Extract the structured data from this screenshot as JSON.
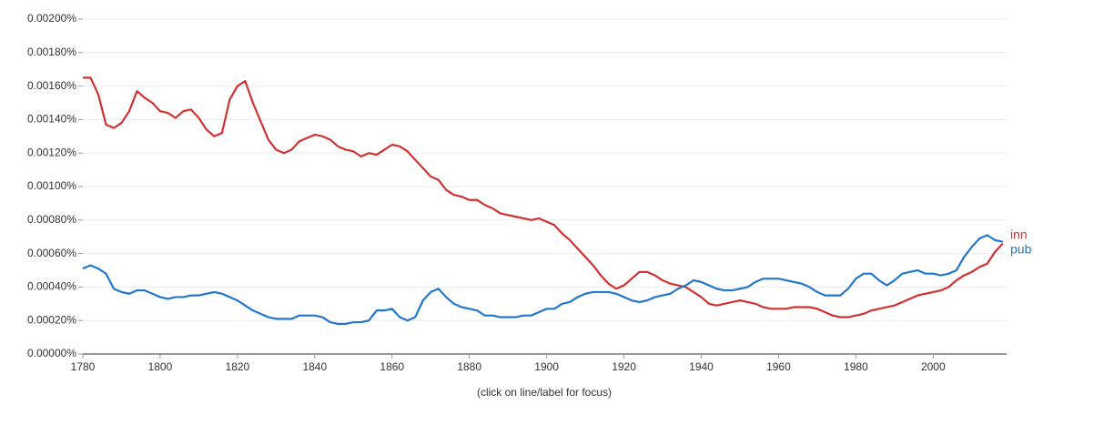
{
  "chart_data": {
    "type": "line",
    "note": "(click on line/label for focus)",
    "x": [
      1780,
      1782,
      1784,
      1786,
      1788,
      1790,
      1792,
      1794,
      1796,
      1798,
      1800,
      1802,
      1804,
      1806,
      1808,
      1810,
      1812,
      1814,
      1816,
      1818,
      1820,
      1822,
      1824,
      1826,
      1828,
      1830,
      1832,
      1834,
      1836,
      1838,
      1840,
      1842,
      1844,
      1846,
      1848,
      1850,
      1852,
      1854,
      1856,
      1858,
      1860,
      1862,
      1864,
      1866,
      1868,
      1870,
      1872,
      1874,
      1876,
      1878,
      1880,
      1882,
      1884,
      1886,
      1888,
      1890,
      1892,
      1894,
      1896,
      1898,
      1900,
      1902,
      1904,
      1906,
      1908,
      1910,
      1912,
      1914,
      1916,
      1918,
      1920,
      1922,
      1924,
      1926,
      1928,
      1930,
      1932,
      1934,
      1936,
      1938,
      1940,
      1942,
      1944,
      1946,
      1948,
      1950,
      1952,
      1954,
      1956,
      1958,
      1960,
      1962,
      1964,
      1966,
      1968,
      1970,
      1972,
      1974,
      1976,
      1978,
      1980,
      1982,
      1984,
      1986,
      1988,
      1990,
      1992,
      1994,
      1996,
      1998,
      2000,
      2002,
      2004,
      2006,
      2008,
      2010,
      2012,
      2014,
      2016,
      2018
    ],
    "series": [
      {
        "name": "inn",
        "color": "#d03232",
        "values": [
          0.00165,
          0.00165,
          0.00155,
          0.00137,
          0.00135,
          0.00138,
          0.00145,
          0.00157,
          0.00153,
          0.0015,
          0.00145,
          0.00144,
          0.00141,
          0.00145,
          0.00146,
          0.00141,
          0.00134,
          0.0013,
          0.00132,
          0.00152,
          0.0016,
          0.00163,
          0.0015,
          0.00139,
          0.00128,
          0.00122,
          0.0012,
          0.00122,
          0.00127,
          0.00129,
          0.00131,
          0.0013,
          0.00128,
          0.00124,
          0.00122,
          0.00121,
          0.00118,
          0.0012,
          0.00119,
          0.00122,
          0.00125,
          0.00124,
          0.00121,
          0.00116,
          0.00111,
          0.00106,
          0.00104,
          0.00098,
          0.00095,
          0.00094,
          0.00092,
          0.00092,
          0.00089,
          0.00087,
          0.00084,
          0.00083,
          0.00082,
          0.00081,
          0.0008,
          0.00081,
          0.00079,
          0.00077,
          0.00072,
          0.00068,
          0.00063,
          0.00058,
          0.00053,
          0.00047,
          0.00042,
          0.00039,
          0.00041,
          0.00045,
          0.00049,
          0.00049,
          0.00047,
          0.00044,
          0.00042,
          0.00041,
          0.0004,
          0.00037,
          0.00034,
          0.0003,
          0.00029,
          0.0003,
          0.00031,
          0.00032,
          0.00031,
          0.0003,
          0.00028,
          0.00027,
          0.00027,
          0.00027,
          0.00028,
          0.00028,
          0.00028,
          0.00027,
          0.00025,
          0.00023,
          0.00022,
          0.00022,
          0.00023,
          0.00024,
          0.00026,
          0.00027,
          0.00028,
          0.00029,
          0.00031,
          0.00033,
          0.00035,
          0.00036,
          0.00037,
          0.00038,
          0.0004,
          0.00044,
          0.00047,
          0.00049,
          0.00052,
          0.00054,
          0.00061,
          0.00066
        ]
      },
      {
        "name": "pub",
        "color": "#2277cc",
        "values": [
          0.00051,
          0.00053,
          0.00051,
          0.00048,
          0.00039,
          0.00037,
          0.00036,
          0.00038,
          0.00038,
          0.00036,
          0.00034,
          0.00033,
          0.00034,
          0.00034,
          0.00035,
          0.00035,
          0.00036,
          0.00037,
          0.00036,
          0.00034,
          0.00032,
          0.00029,
          0.00026,
          0.00024,
          0.00022,
          0.00021,
          0.00021,
          0.00021,
          0.00023,
          0.00023,
          0.00023,
          0.00022,
          0.00019,
          0.00018,
          0.00018,
          0.00019,
          0.00019,
          0.0002,
          0.00026,
          0.00026,
          0.00027,
          0.00022,
          0.0002,
          0.00022,
          0.00032,
          0.00037,
          0.00039,
          0.00034,
          0.0003,
          0.00028,
          0.00027,
          0.00026,
          0.00023,
          0.00023,
          0.00022,
          0.00022,
          0.00022,
          0.00023,
          0.00023,
          0.00025,
          0.00027,
          0.00027,
          0.0003,
          0.00031,
          0.00034,
          0.00036,
          0.00037,
          0.00037,
          0.00037,
          0.00036,
          0.00034,
          0.00032,
          0.00031,
          0.00032,
          0.00034,
          0.00035,
          0.00036,
          0.00039,
          0.00041,
          0.00044,
          0.00043,
          0.00041,
          0.00039,
          0.00038,
          0.00038,
          0.00039,
          0.0004,
          0.00043,
          0.00045,
          0.00045,
          0.00045,
          0.00044,
          0.00043,
          0.00042,
          0.0004,
          0.00037,
          0.00035,
          0.00035,
          0.00035,
          0.00039,
          0.00045,
          0.00048,
          0.00048,
          0.00044,
          0.00041,
          0.00044,
          0.00048,
          0.00049,
          0.0005,
          0.00048,
          0.00048,
          0.00047,
          0.00048,
          0.0005,
          0.00058,
          0.00064,
          0.00069,
          0.00071,
          0.00068,
          0.00067
        ]
      }
    ],
    "xlim": [
      1780,
      2019
    ],
    "xticks": [
      1780,
      1800,
      1820,
      1840,
      1860,
      1880,
      1900,
      1920,
      1940,
      1960,
      1980,
      2000
    ],
    "ylim": [
      0,
      0.002
    ],
    "yticks": [
      {
        "value": 0,
        "label": "0.00000%"
      },
      {
        "value": 0.0002,
        "label": "0.00020%"
      },
      {
        "value": 0.0004,
        "label": "0.00040%"
      },
      {
        "value": 0.0006,
        "label": "0.00060%"
      },
      {
        "value": 0.0008,
        "label": "0.00080%"
      },
      {
        "value": 0.001,
        "label": "0.00100%"
      },
      {
        "value": 0.0012,
        "label": "0.00120%"
      },
      {
        "value": 0.0014,
        "label": "0.00140%"
      },
      {
        "value": 0.0016,
        "label": "0.00160%"
      },
      {
        "value": 0.0018,
        "label": "0.00180%"
      },
      {
        "value": 0.002,
        "label": "0.00200%"
      }
    ],
    "grid": true
  }
}
